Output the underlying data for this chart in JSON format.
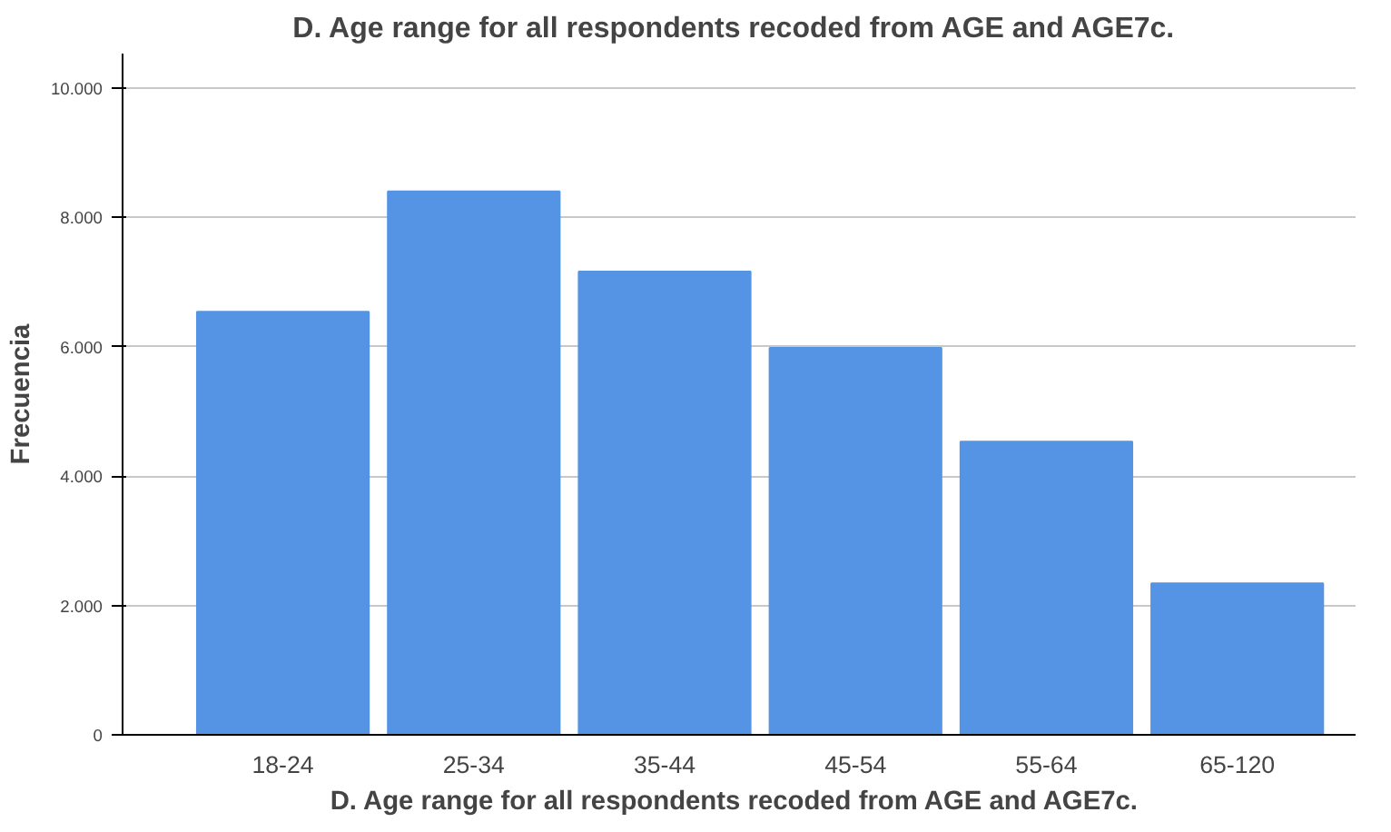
{
  "chart_data": {
    "type": "bar",
    "title": "D.  Age range for all respondents recoded from AGE and AGE7c.",
    "xlabel": "D.  Age range for all respondents recoded from AGE and AGE7c.",
    "ylabel": "Frecuencia",
    "categories": [
      "18-24",
      "25-34",
      "35-44",
      "45-54",
      "55-64",
      "65-120"
    ],
    "values": [
      6540,
      8400,
      7160,
      5980,
      4530,
      2340
    ],
    "color": "#5594e4",
    "ylim": [
      0,
      10530
    ],
    "yticks": [
      {
        "value": 0,
        "label": "0"
      },
      {
        "value": 2000,
        "label": "2.000"
      },
      {
        "value": 4000,
        "label": "4.000"
      },
      {
        "value": 6000,
        "label": "6.000"
      },
      {
        "value": 8000,
        "label": "8.000"
      },
      {
        "value": 10000,
        "label": "10.000"
      }
    ],
    "grid": "y"
  }
}
